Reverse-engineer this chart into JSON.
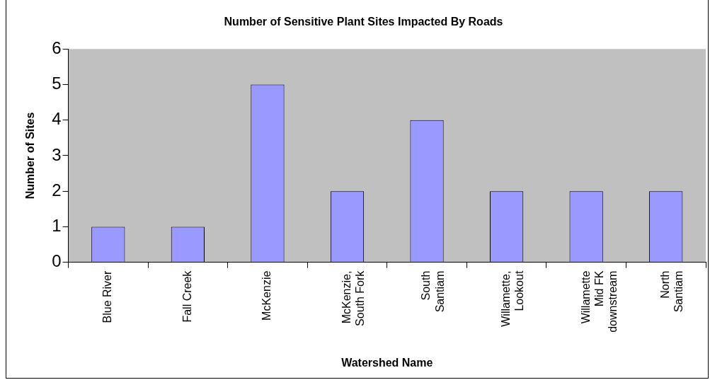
{
  "chart_data": {
    "type": "bar",
    "title": "Number of Sensitive Plant Sites Impacted By Roads",
    "xlabel": "Watershed Name",
    "ylabel": "Number of Sites",
    "categories": [
      "Blue River",
      "Fall Creek",
      "McKenzie",
      "McKenzie, South Fork",
      "South Santiam",
      "Willamette, Lookout",
      "Willamette Mid FK downstream",
      "North Santiam"
    ],
    "values": [
      1,
      1,
      5,
      2,
      4,
      2,
      2,
      2
    ],
    "color": "#9999ff",
    "ylim": [
      0,
      6
    ],
    "yticks": [
      0,
      1,
      2,
      3,
      4,
      5,
      6
    ],
    "grid": false,
    "legend": false
  }
}
